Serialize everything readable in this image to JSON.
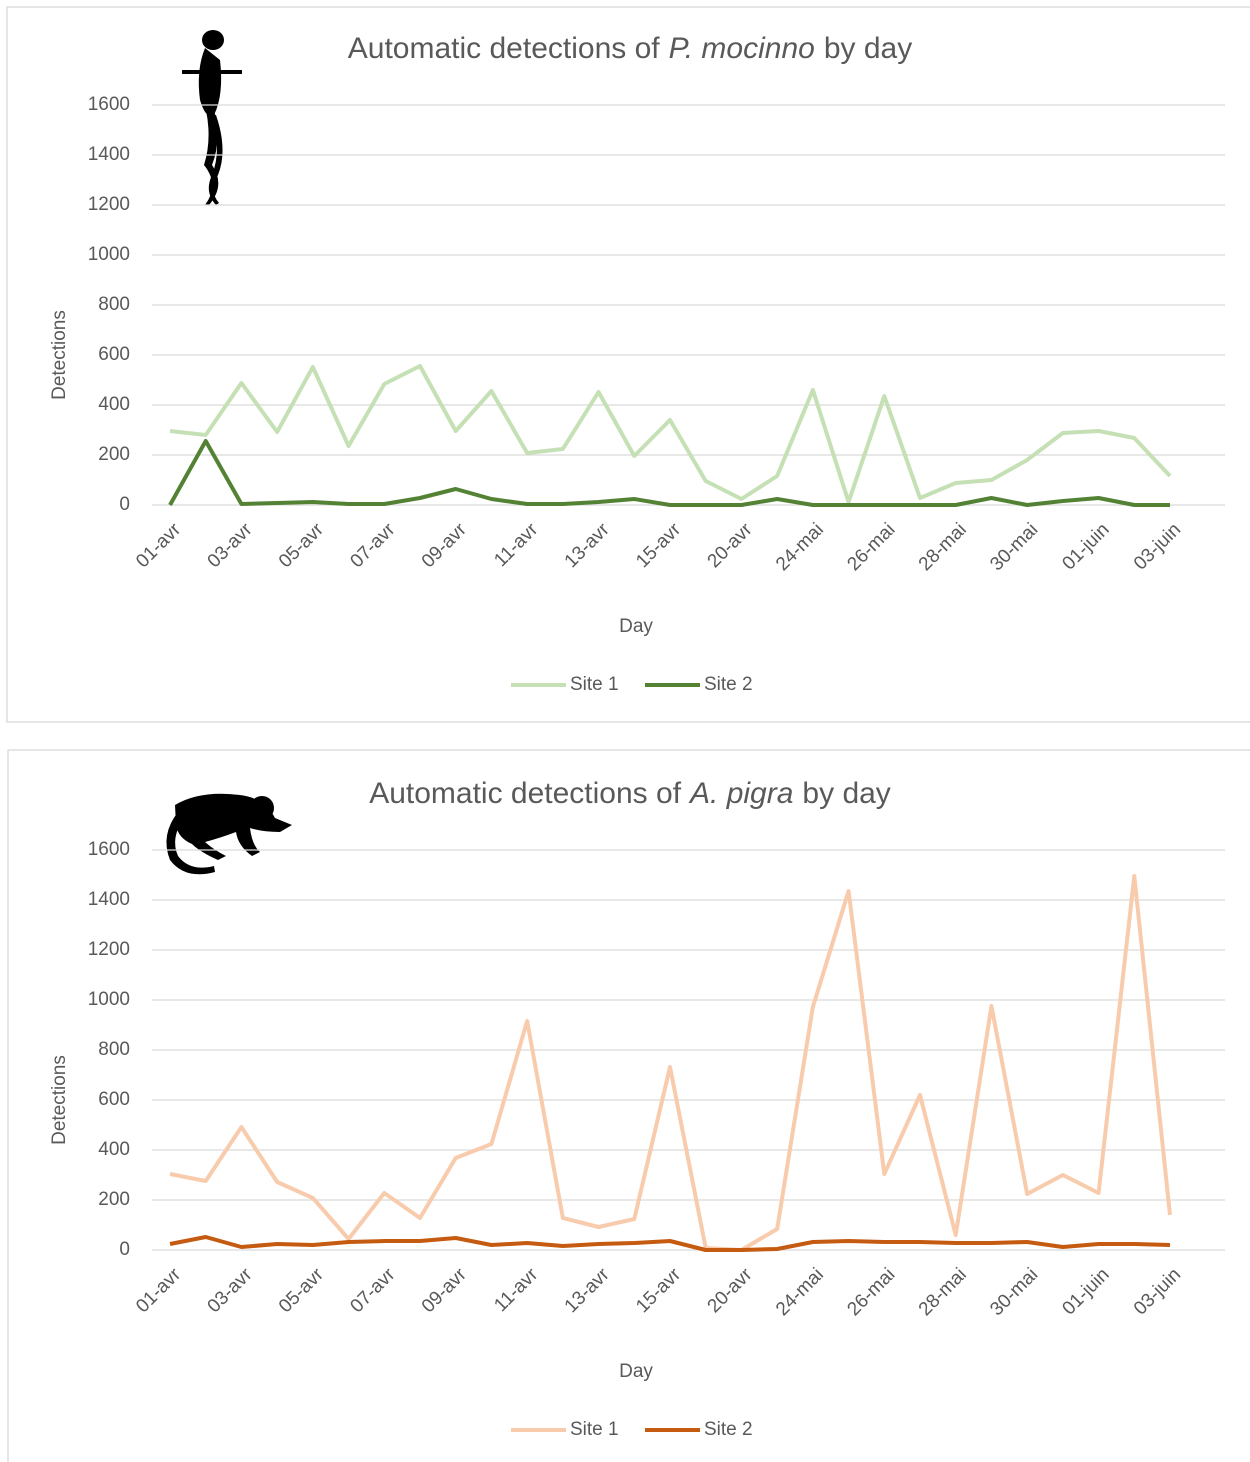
{
  "chart_data": [
    {
      "type": "line",
      "title": [
        "Automatic detections of",
        "P. mocinno",
        "by day"
      ],
      "x_label": "Day",
      "y_label": "Detections",
      "categories": [
        "01-avr",
        null,
        "03-avr",
        null,
        "05-avr",
        null,
        "07-avr",
        null,
        "09-avr",
        null,
        "11-avr",
        null,
        "13-avr",
        null,
        "15-avr",
        null,
        "20-avr",
        null,
        "24-mai",
        null,
        "26-mai",
        null,
        "28-mai",
        null,
        "30-mai",
        null,
        "01-juin",
        null,
        "03-juin"
      ],
      "series": [
        {
          "name": "Site 1",
          "color": "#c5e0b4",
          "values": [
            296,
            280,
            488,
            292,
            552,
            236,
            484,
            556,
            296,
            456,
            208,
            224,
            452,
            196,
            340,
            96,
            24,
            116,
            460,
            12,
            436,
            28,
            88,
            100,
            180,
            288,
            296,
            268,
            116
          ]
        },
        {
          "name": "Site 2",
          "color": "#548235",
          "values": [
            0,
            256,
            4,
            8,
            12,
            4,
            4,
            28,
            64,
            24,
            4,
            4,
            12,
            24,
            0,
            0,
            0,
            24,
            0,
            0,
            0,
            0,
            0,
            28,
            0,
            16,
            28,
            0,
            0
          ]
        }
      ],
      "ylim": [
        0,
        1600
      ],
      "yticks": [
        0,
        200,
        400,
        600,
        800,
        1000,
        1200,
        1400,
        1600
      ],
      "grid": true,
      "legend": "bottom"
    },
    {
      "type": "line",
      "title": [
        "Automatic detections of",
        "A. pigra",
        "by day"
      ],
      "x_label": "Day",
      "y_label": "Detections",
      "categories": [
        "01-avr",
        null,
        "03-avr",
        null,
        "05-avr",
        null,
        "07-avr",
        null,
        "09-avr",
        null,
        "11-avr",
        null,
        "13-avr",
        null,
        "15-avr",
        null,
        "20-avr",
        null,
        "24-mai",
        null,
        "26-mai",
        null,
        "28-mai",
        null,
        "30-mai",
        null,
        "01-juin",
        null,
        "03-juin"
      ],
      "series": [
        {
          "name": "Site 1",
          "color": "#f8cbad",
          "values": [
            304,
            276,
            492,
            272,
            208,
            44,
            228,
            128,
            368,
            424,
            916,
            128,
            92,
            124,
            732,
            8,
            0,
            84,
            972,
            1436,
            304,
            620,
            60,
            976,
            224,
            300,
            228,
            1496,
            140
          ]
        },
        {
          "name": "Site 2",
          "color": "#c55a11",
          "values": [
            24,
            52,
            12,
            24,
            20,
            32,
            36,
            36,
            48,
            20,
            28,
            16,
            24,
            28,
            36,
            0,
            0,
            4,
            32,
            36,
            32,
            32,
            28,
            28,
            32,
            12,
            24,
            24,
            20
          ]
        }
      ],
      "ylim": [
        0,
        1600
      ],
      "yticks": [
        0,
        200,
        400,
        600,
        800,
        1000,
        1200,
        1400,
        1600
      ],
      "grid": true,
      "legend": "bottom"
    }
  ]
}
